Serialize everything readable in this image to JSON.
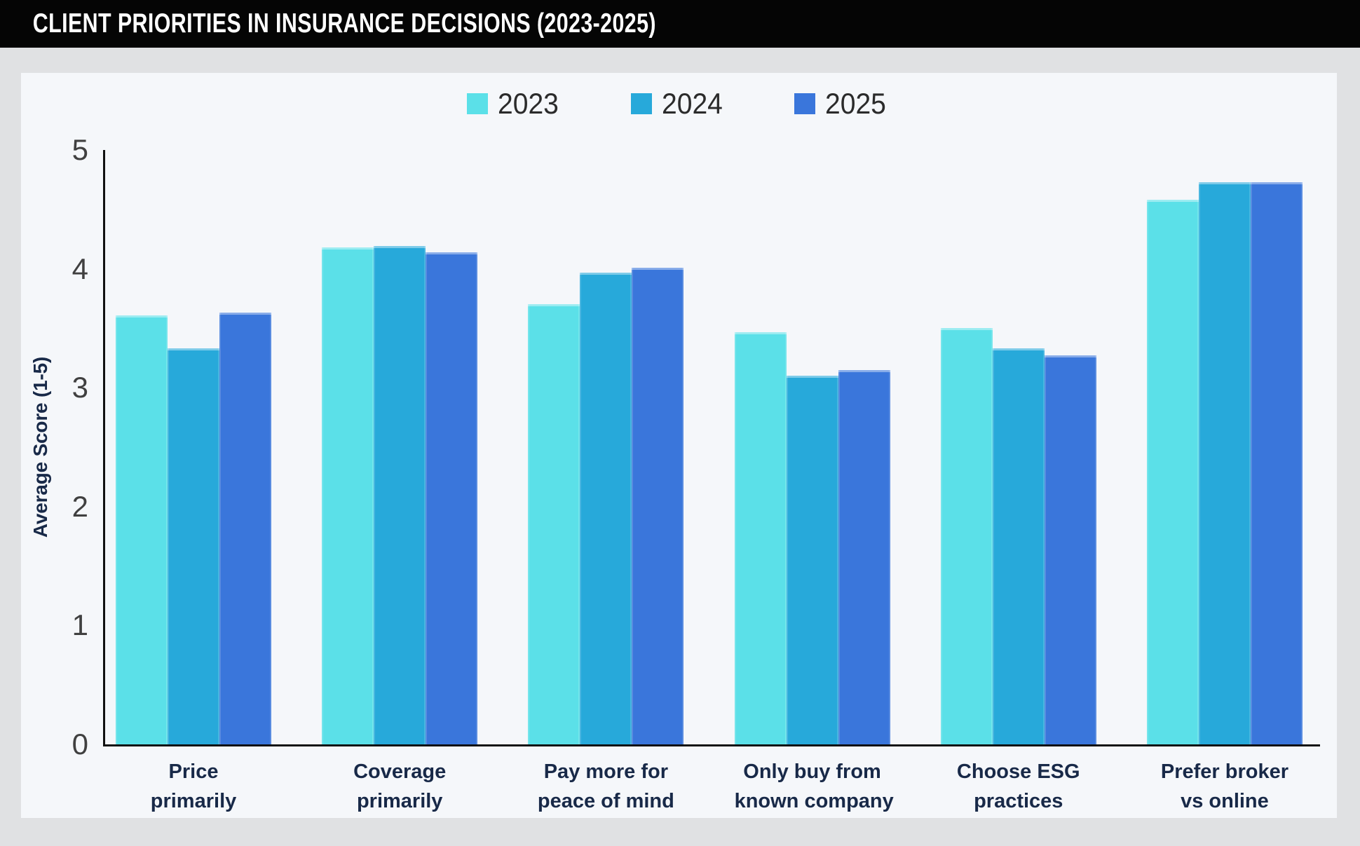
{
  "header": {
    "title": "CLIENT PRIORITIES IN INSURANCE DECISIONS (2023-2025)"
  },
  "chart_data": {
    "type": "bar",
    "title": "CLIENT PRIORITIES IN INSURANCE DECISIONS (2023-2025)",
    "ylabel": "Average Score (1-5)",
    "xlabel": "",
    "ylim": [
      0,
      5
    ],
    "yticks": [
      0,
      1,
      2,
      3,
      4,
      5
    ],
    "grid": false,
    "legend_position": "top",
    "categories": [
      "Price primarily",
      "Coverage primarily",
      "Pay more for peace of mind",
      "Only buy from known company",
      "Choose ESG practices",
      "Prefer broker vs online"
    ],
    "category_lines": [
      [
        "Price",
        "primarily"
      ],
      [
        "Coverage",
        "primarily"
      ],
      [
        "Pay more for",
        "peace of mind"
      ],
      [
        "Only buy from",
        "known company"
      ],
      [
        "Choose ESG",
        "practices"
      ],
      [
        "Prefer broker",
        "vs online"
      ]
    ],
    "series": [
      {
        "name": "2023",
        "color": "#5BE0E8",
        "values": [
          3.61,
          4.18,
          3.7,
          3.47,
          3.5,
          4.58
        ]
      },
      {
        "name": "2024",
        "color": "#27A9DA",
        "values": [
          3.33,
          4.19,
          3.97,
          3.1,
          3.33,
          4.73
        ]
      },
      {
        "name": "2025",
        "color": "#3A76DB",
        "values": [
          3.63,
          4.14,
          4.01,
          3.15,
          3.27,
          4.73
        ]
      }
    ]
  },
  "colors": {
    "page_bg": "#e0e1e3",
    "panel_bg": "#f5f7fa",
    "header_bg": "#050505",
    "header_text": "#ffffff",
    "axis": "#111111",
    "tick_text": "#404040",
    "label_text": "#182948",
    "legend_text": "#2b2b2b"
  }
}
